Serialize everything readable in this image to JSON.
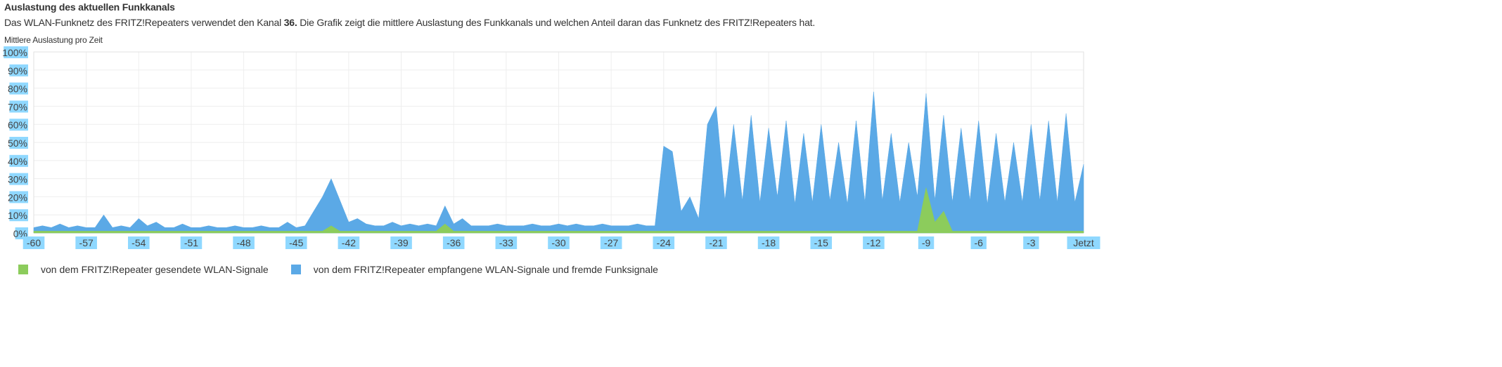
{
  "header": {
    "title": "Auslastung des aktuellen Funkkanals",
    "desc_before": "Das WLAN-Funknetz des FRITZ!Repeaters verwendet den Kanal ",
    "channel": "36.",
    "desc_after": " Die Grafik zeigt die mittlere Auslastung des Funkkanals und welchen Anteil daran das Funknetz des FRITZ!Repeaters hat.",
    "chart_caption": "Mittlere Auslastung pro Zeit"
  },
  "colors": {
    "sent": "#8ccc5c",
    "received": "#5ba9e6",
    "label_highlight": "#8fd8ff",
    "grid": "#eeeeee"
  },
  "chart_data": {
    "type": "area",
    "title": "Mittlere Auslastung pro Zeit",
    "stacked": false,
    "grid": true,
    "legend_position": "bottom-left",
    "xlim": [
      -60,
      0
    ],
    "ylim": [
      0,
      100
    ],
    "x_tick_labels": [
      "-60",
      "-57",
      "-54",
      "-51",
      "-48",
      "-45",
      "-42",
      "-39",
      "-36",
      "-33",
      "-30",
      "-27",
      "-24",
      "-21",
      "-18",
      "-15",
      "-12",
      "-9",
      "-6",
      "-3",
      "Jetzt"
    ],
    "y_tick_labels": [
      "0%",
      "10%",
      "20%",
      "30%",
      "40%",
      "50%",
      "60%",
      "70%",
      "80%",
      "90%",
      "100%"
    ],
    "x_step": 0.5,
    "series": [
      {
        "name": "von dem FRITZ!Repeater empfangene WLAN-Signale und fremde Funksignale",
        "color": "#5ba9e6",
        "values": [
          3,
          4,
          3,
          5,
          3,
          4,
          3,
          3,
          10,
          3,
          4,
          3,
          8,
          4,
          6,
          3,
          3,
          5,
          3,
          3,
          4,
          3,
          3,
          4,
          3,
          3,
          4,
          3,
          3,
          6,
          3,
          4,
          12,
          20,
          30,
          18,
          6,
          8,
          5,
          4,
          4,
          6,
          4,
          5,
          4,
          5,
          4,
          15,
          5,
          8,
          4,
          4,
          4,
          5,
          4,
          4,
          4,
          5,
          4,
          4,
          5,
          4,
          5,
          4,
          4,
          5,
          4,
          4,
          4,
          5,
          4,
          4,
          48,
          45,
          12,
          20,
          8,
          60,
          70,
          18,
          60,
          18,
          65,
          17,
          58,
          20,
          62,
          16,
          55,
          17,
          60,
          18,
          50,
          16,
          62,
          17,
          78,
          18,
          55,
          17,
          50,
          20,
          77,
          18,
          65,
          17,
          58,
          18,
          62,
          16,
          55,
          17,
          50,
          17,
          60,
          18,
          62,
          17,
          66,
          17,
          38
        ]
      },
      {
        "name": "von dem FRITZ!Repeater gesendete WLAN-Signale",
        "color": "#8ccc5c",
        "values": [
          1,
          1,
          1,
          1,
          1,
          1,
          1,
          1,
          1,
          1,
          1,
          1,
          1,
          1,
          1,
          1,
          1,
          1,
          1,
          1,
          1,
          1,
          1,
          1,
          1,
          1,
          1,
          1,
          1,
          1,
          1,
          1,
          1,
          1,
          4,
          1,
          1,
          1,
          1,
          1,
          1,
          1,
          1,
          1,
          1,
          1,
          1,
          5,
          1,
          1,
          1,
          1,
          1,
          1,
          1,
          1,
          1,
          1,
          1,
          1,
          1,
          1,
          1,
          1,
          1,
          1,
          1,
          1,
          1,
          1,
          1,
          1,
          1,
          1,
          1,
          1,
          1,
          1,
          1,
          1,
          1,
          1,
          1,
          1,
          1,
          1,
          1,
          1,
          1,
          1,
          1,
          1,
          1,
          1,
          1,
          1,
          1,
          1,
          1,
          1,
          1,
          1,
          25,
          6,
          12,
          1,
          1,
          1,
          1,
          1,
          1,
          1,
          1,
          1,
          1,
          1,
          1,
          1,
          1,
          1,
          1
        ]
      }
    ]
  },
  "legend": [
    {
      "label": "von dem FRITZ!Repeater gesendete WLAN-Signale",
      "color": "#8ccc5c"
    },
    {
      "label": "von dem FRITZ!Repeater empfangene WLAN-Signale und fremde Funksignale",
      "color": "#5ba9e6"
    }
  ]
}
